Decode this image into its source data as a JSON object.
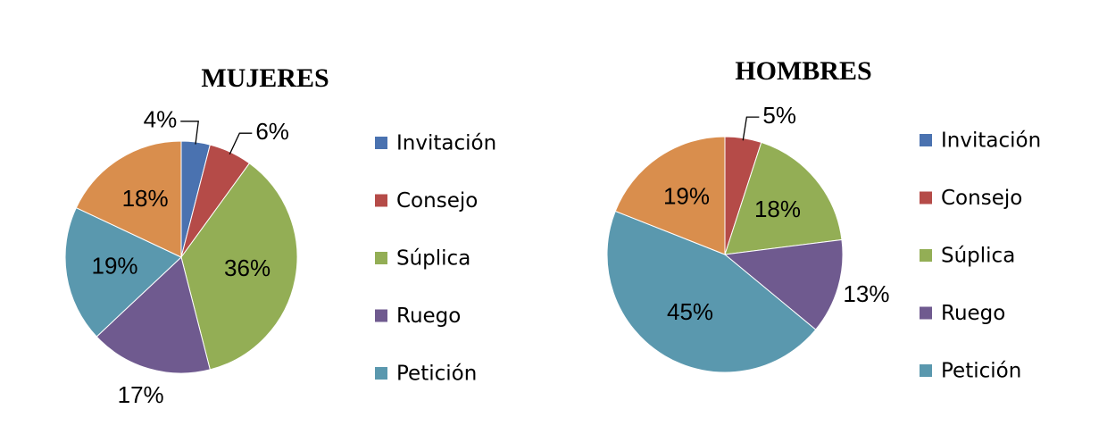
{
  "chart_data": [
    {
      "type": "pie",
      "title": "MUJERES",
      "categories": [
        "Invitación",
        "Consejo",
        "Súplica",
        "Ruego",
        "Petición",
        null
      ],
      "values": [
        4,
        6,
        36,
        17,
        19,
        18
      ],
      "value_labels": [
        "4%",
        "6%",
        "36%",
        "17%",
        "19%",
        "18%"
      ],
      "colors": [
        "#4a72b0",
        "#b54b48",
        "#93ae55",
        "#6f5a8f",
        "#5a98ae",
        "#d98e4d"
      ]
    },
    {
      "type": "pie",
      "title": "HOMBRES",
      "categories": [
        "Invitación",
        "Consejo",
        "Súplica",
        "Ruego",
        "Petición",
        null
      ],
      "values": [
        0,
        5,
        18,
        13,
        45,
        19
      ],
      "value_labels": [
        null,
        "5%",
        "18%",
        "13%",
        "45%",
        "19%"
      ],
      "colors": [
        "#4a72b0",
        "#b54b48",
        "#93ae55",
        "#6f5a8f",
        "#5a98ae",
        "#d98e4d"
      ]
    }
  ]
}
